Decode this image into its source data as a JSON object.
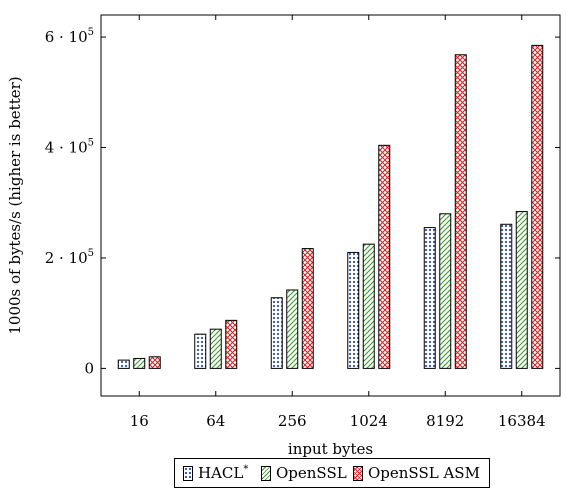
{
  "chart_data": {
    "type": "bar",
    "categories": [
      "16",
      "64",
      "256",
      "1024",
      "8192",
      "16384"
    ],
    "series": [
      {
        "name": "HACL*",
        "values": [
          15000,
          62000,
          128000,
          210000,
          255000,
          261000
        ],
        "color": "#2f4f9f",
        "pattern": "dots"
      },
      {
        "name": "OpenSSL",
        "values": [
          18000,
          71000,
          142000,
          225000,
          280000,
          284000
        ],
        "color": "#3b9a2b",
        "pattern": "diagonal-lines"
      },
      {
        "name": "OpenSSL ASM",
        "values": [
          21000,
          87000,
          217000,
          404000,
          568000,
          585000
        ],
        "color": "#d42020",
        "pattern": "crosshatch"
      }
    ],
    "ylim": [
      -50000,
      640000
    ],
    "yticks": [
      0,
      200000,
      400000,
      600000
    ],
    "ytick_labels": [
      "0",
      "2 · 10",
      "4 · 10",
      "6 · 10"
    ],
    "ytick_exponent": "5",
    "xlabel": "input bytes",
    "ylabel": "1000s of bytes/s (higher is better)",
    "legend": {
      "placement": "bottom",
      "entries": [
        "HACL",
        "OpenSSL",
        "OpenSSL ASM"
      ],
      "hacl_superscript": "*"
    }
  }
}
